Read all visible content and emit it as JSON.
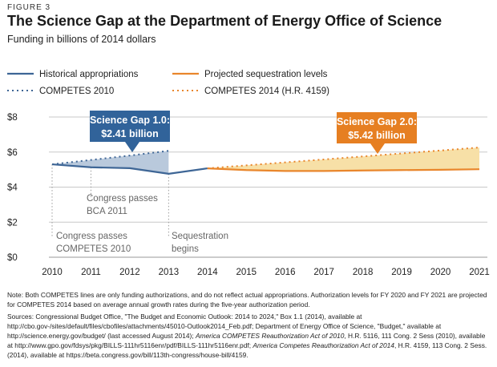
{
  "figure_label": "FIGURE 3",
  "title": "The Science Gap at the Department of Energy Office of Science",
  "subtitle": "Funding in billions of 2014 dollars",
  "legend": {
    "historical": "Historical appropriations",
    "competes2010": "COMPETES 2010",
    "sequestration": "Projected sequestration levels",
    "competes2014": "COMPETES 2014 (H.R. 4159)"
  },
  "colors": {
    "historical": "#3e6696",
    "competes2010": "#3e6696",
    "sequestration": "#e9862c",
    "competes2014": "#e9862c",
    "gap1_fill": "#b9c9dc",
    "gap2_fill": "#f7e0a7",
    "callout_blue": "#31639a",
    "callout_orange": "#e67f22",
    "grid": "#c8c8c8",
    "annotation_text": "#666666"
  },
  "callouts": {
    "gap1_title": "Science Gap 1.0:",
    "gap1_value": "$2.41 billion",
    "gap2_title": "Science Gap 2.0:",
    "gap2_value": "$5.42 billion"
  },
  "annotations": {
    "bca_line1": "Congress passes",
    "bca_line2": "BCA 2011",
    "competes_line1": "Congress passes",
    "competes_line2": "COMPETES 2010",
    "seq_line1": "Sequestration",
    "seq_line2": "begins"
  },
  "chart_data": {
    "type": "line",
    "ylim": [
      0,
      8
    ],
    "y_ticks": [
      "$0",
      "$2",
      "$4",
      "$6",
      "$8"
    ],
    "y_tick_values": [
      0,
      2,
      4,
      6,
      8
    ],
    "x_ticks": [
      "2010",
      "2011",
      "2012",
      "2013",
      "2014",
      "2015",
      "2016",
      "2017",
      "2018",
      "2019",
      "2020",
      "2021"
    ],
    "xlim": [
      2010,
      2021
    ],
    "grid": "horizontal",
    "legend_position": "top",
    "series": [
      {
        "name": "Historical appropriations",
        "style": "solid",
        "points": [
          [
            2010,
            5.3
          ],
          [
            2011,
            5.13
          ],
          [
            2012,
            5.08
          ],
          [
            2013,
            4.76
          ],
          [
            2014,
            5.07
          ]
        ]
      },
      {
        "name": "COMPETES 2010",
        "style": "dotted",
        "points": [
          [
            2010,
            5.3
          ],
          [
            2011,
            5.55
          ],
          [
            2012,
            5.8
          ],
          [
            2013,
            6.07
          ]
        ]
      },
      {
        "name": "Projected sequestration levels",
        "style": "solid",
        "points": [
          [
            2014,
            5.07
          ],
          [
            2015,
            4.97
          ],
          [
            2016,
            4.92
          ],
          [
            2017,
            4.92
          ],
          [
            2018,
            4.95
          ],
          [
            2019,
            4.97
          ],
          [
            2020,
            4.99
          ],
          [
            2021,
            5.02
          ]
        ]
      },
      {
        "name": "COMPETES 2014 (H.R. 4159)",
        "style": "dotted",
        "points": [
          [
            2014,
            5.07
          ],
          [
            2015,
            5.24
          ],
          [
            2016,
            5.41
          ],
          [
            2017,
            5.58
          ],
          [
            2018,
            5.75
          ],
          [
            2019,
            5.92
          ],
          [
            2020,
            6.09
          ],
          [
            2021,
            6.26
          ]
        ]
      }
    ],
    "gaps": [
      {
        "label": "Science Gap 1.0",
        "value": 2.41,
        "from": 2010,
        "to": 2013
      },
      {
        "label": "Science Gap 2.0",
        "value": 5.42,
        "from": 2014,
        "to": 2021
      }
    ]
  },
  "notes": {
    "note": "Note: Both COMPETES lines are only funding authorizations, and do not reflect actual appropriations. Authorization levels for FY 2020 and FY 2021 are projected for COMPETES 2014 based on average annual growth rates during the five-year authorization period.",
    "sources_a": "Sources: Congressional Budget Office, \"The Budget and Economic Outlook: 2014 to 2024,\" Box 1.1 (2014), available at http://cbo.gov-/sites/default/files/cbofiles/attachments/45010-Outlook2014_Feb.pdf; Department of Energy Office of Science, \"Budget,\" available at http://science.energy.gov/budget/ (last accessed August 2014); ",
    "sources_b": "America COMPETES Reauthorization Act of 2010",
    "sources_c": ", H.R. 5116, 111 Cong. 2 Sess (2010), available at http://www.gpo.gov/fdsys/pkg/BILLS-111hr5116enr/pdf/BILLS-111hr5116enr.pdf; ",
    "sources_d": "America Competes Reauthorization Act of 2014",
    "sources_e": ", H.R. 4159, 113 Cong. 2 Sess. (2014), available at https://beta.congress.gov/bill/113th-congress/house-bill/4159."
  }
}
